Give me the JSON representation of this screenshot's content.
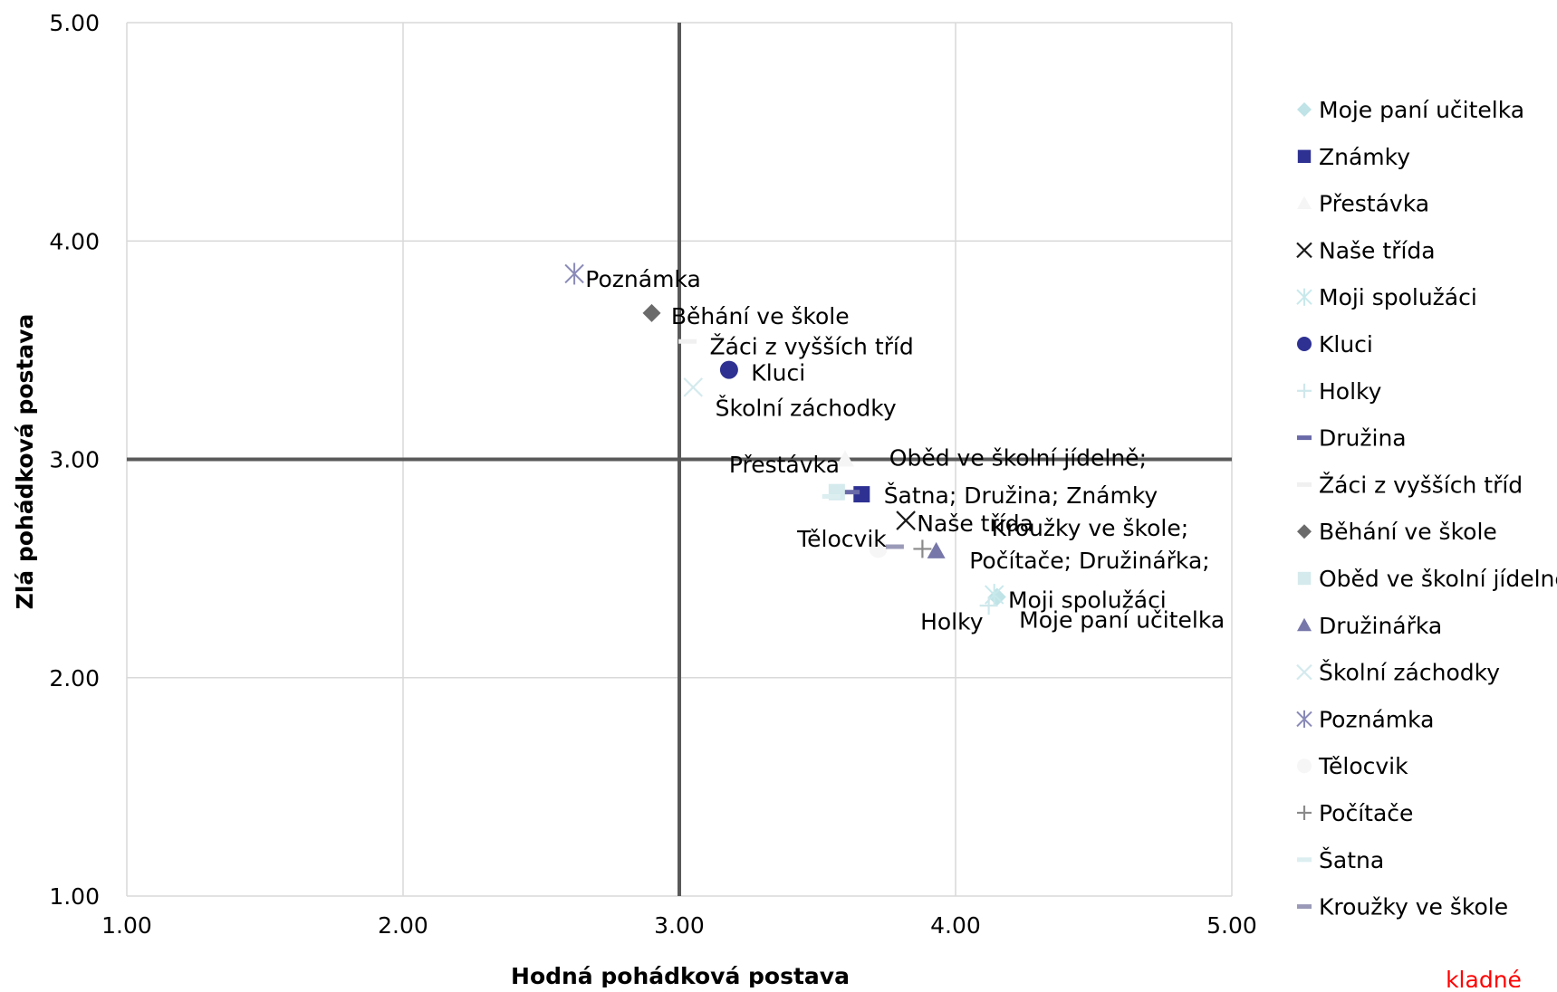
{
  "chart_data": {
    "type": "scatter",
    "xlabel": "Hodná pohádková postava",
    "ylabel": "Zlá pohádková postava",
    "xlim": [
      1,
      5
    ],
    "ylim": [
      1,
      5
    ],
    "x_ticks": [
      "1.00",
      "2.00",
      "3.00",
      "4.00",
      "5.00"
    ],
    "y_ticks": [
      "1.00",
      "2.00",
      "3.00",
      "4.00",
      "5.00"
    ],
    "grid": true,
    "reference_lines": {
      "x": 3.0,
      "y": 3.0
    },
    "legend_position": "right",
    "footer_note": "kladné",
    "series": [
      {
        "name": "Moje paní učitelka",
        "x": 4.15,
        "y": 2.37,
        "marker": "diamond",
        "color": "#bfe3e6"
      },
      {
        "name": "Známky",
        "x": 3.66,
        "y": 2.84,
        "marker": "square",
        "color": "#2e3192"
      },
      {
        "name": "Přestávka",
        "x": 3.6,
        "y": 3.0,
        "marker": "triangle",
        "color": "#f5f5f5"
      },
      {
        "name": "Naše třída",
        "x": 3.82,
        "y": 2.72,
        "marker": "x",
        "color": "#1a1a1a"
      },
      {
        "name": "Moji spolužáci",
        "x": 4.14,
        "y": 2.38,
        "marker": "star",
        "color": "#c8e9ec"
      },
      {
        "name": "Kluci",
        "x": 3.18,
        "y": 3.41,
        "marker": "circle",
        "color": "#2e3192"
      },
      {
        "name": "Holky",
        "x": 4.12,
        "y": 2.33,
        "marker": "plus",
        "color": "#cfe8ec"
      },
      {
        "name": "Družina",
        "x": 3.62,
        "y": 2.85,
        "marker": "dash",
        "color": "#6a6aa8"
      },
      {
        "name": "Žáci z vyšších tříd",
        "x": 3.03,
        "y": 3.54,
        "marker": "dash",
        "color": "#f0f0f0"
      },
      {
        "name": "Běhání ve škole",
        "x": 2.9,
        "y": 3.67,
        "marker": "diamond",
        "color": "#6b6b6b"
      },
      {
        "name": "Oběd ve školní jídelně",
        "x": 3.57,
        "y": 2.85,
        "marker": "square",
        "color": "#d4eaed"
      },
      {
        "name": "Družinářka",
        "x": 3.93,
        "y": 2.58,
        "marker": "triangle",
        "color": "#7777aa"
      },
      {
        "name": "Školní záchodky",
        "x": 3.05,
        "y": 3.33,
        "marker": "x",
        "color": "#d4eaed"
      },
      {
        "name": "Poznámka",
        "x": 2.62,
        "y": 3.85,
        "marker": "star",
        "color": "#8a8ab8"
      },
      {
        "name": "Tělocvik",
        "x": 3.72,
        "y": 2.59,
        "marker": "circle",
        "color": "#f6f6f6"
      },
      {
        "name": "Počítače",
        "x": 3.88,
        "y": 2.59,
        "marker": "plus",
        "color": "#8a8a8a"
      },
      {
        "name": "Šatna",
        "x": 3.55,
        "y": 2.83,
        "marker": "dash",
        "color": "#dceef0"
      },
      {
        "name": "Kroužky ve škole",
        "x": 3.78,
        "y": 2.6,
        "marker": "dash",
        "color": "#9a9ab8"
      }
    ],
    "point_labels": [
      {
        "text": "Poznámka",
        "x": 2.66,
        "y": 3.79,
        "anchor": "start"
      },
      {
        "text": "Běhání ve škole",
        "x": 2.97,
        "y": 3.62,
        "anchor": "start"
      },
      {
        "text": "Žáci z vyšších tříd",
        "x": 3.11,
        "y": 3.48,
        "anchor": "start"
      },
      {
        "text": "Kluci",
        "x": 3.26,
        "y": 3.36,
        "anchor": "start"
      },
      {
        "text": "Školní záchodky",
        "x": 3.13,
        "y": 3.2,
        "anchor": "start"
      },
      {
        "text": "Přestávka",
        "x": 3.58,
        "y": 2.94,
        "anchor": "end"
      },
      {
        "text": "Oběd ve školní jídelně;",
        "x": 3.76,
        "y": 2.97,
        "anchor": "start"
      },
      {
        "text": "Šatna; Družina; Známky",
        "x": 3.74,
        "y": 2.8,
        "anchor": "start"
      },
      {
        "text": "Naše třída",
        "x": 3.86,
        "y": 2.67,
        "anchor": "start"
      },
      {
        "text": "Kroužky ve škole;",
        "x": 4.13,
        "y": 2.65,
        "anchor": "start"
      },
      {
        "text": "Tělocvik",
        "x": 3.75,
        "y": 2.6,
        "anchor": "end"
      },
      {
        "text": "Počítače; Družinářka;",
        "x": 4.05,
        "y": 2.5,
        "anchor": "start"
      },
      {
        "text": "Moji spolužáci",
        "x": 4.19,
        "y": 2.32,
        "anchor": "start"
      },
      {
        "text": "Holky",
        "x": 4.1,
        "y": 2.22,
        "anchor": "end"
      },
      {
        "text": "Moje paní učitelka",
        "x": 4.23,
        "y": 2.23,
        "anchor": "start"
      }
    ]
  }
}
